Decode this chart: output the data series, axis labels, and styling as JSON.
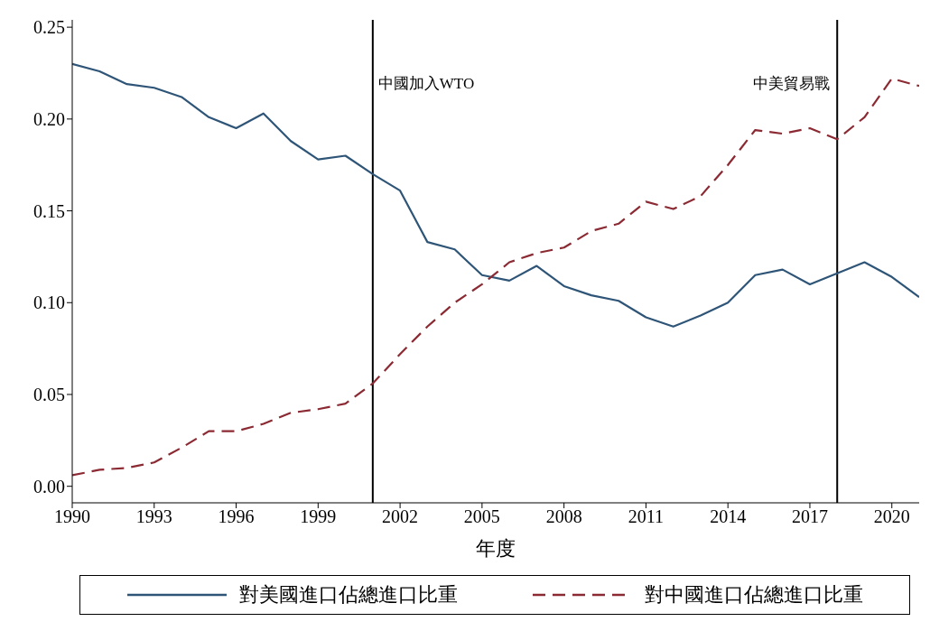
{
  "chart_data": {
    "type": "line",
    "xlabel": "年度",
    "x": [
      1990,
      1991,
      1992,
      1993,
      1994,
      1995,
      1996,
      1997,
      1998,
      1999,
      2000,
      2001,
      2002,
      2003,
      2004,
      2005,
      2006,
      2007,
      2008,
      2009,
      2010,
      2011,
      2012,
      2013,
      2014,
      2015,
      2016,
      2017,
      2018,
      2019,
      2020,
      2021
    ],
    "series": [
      {
        "name": "對美國進口佔總進口比重",
        "color": "#2e5577",
        "line_style": "solid",
        "values": [
          0.23,
          0.226,
          0.219,
          0.217,
          0.212,
          0.201,
          0.195,
          0.203,
          0.188,
          0.178,
          0.18,
          0.17,
          0.161,
          0.133,
          0.129,
          0.115,
          0.112,
          0.12,
          0.109,
          0.104,
          0.101,
          0.092,
          0.087,
          0.093,
          0.1,
          0.115,
          0.118,
          0.11,
          0.116,
          0.122,
          0.114,
          0.103
        ]
      },
      {
        "name": "對中國進口佔總進口比重",
        "color": "#8b2a33",
        "line_style": "dashed",
        "values": [
          0.006,
          0.009,
          0.01,
          0.013,
          0.021,
          0.03,
          0.03,
          0.034,
          0.04,
          0.042,
          0.045,
          0.056,
          0.072,
          0.087,
          0.1,
          0.11,
          0.122,
          0.127,
          0.13,
          0.139,
          0.143,
          0.155,
          0.151,
          0.158,
          0.175,
          0.194,
          0.192,
          0.195,
          0.189,
          0.201,
          0.222,
          0.218
        ]
      }
    ],
    "xlim": [
      1990,
      2021
    ],
    "xticks": [
      1990,
      1993,
      1996,
      1999,
      2002,
      2005,
      2008,
      2011,
      2014,
      2017,
      2020
    ],
    "ylim": [
      -0.009,
      0.254
    ],
    "yticks": [
      {
        "value": 0,
        "label": "0.00"
      },
      {
        "value": 0.05,
        "label": "0.05"
      },
      {
        "value": 0.1,
        "label": "0.10"
      },
      {
        "value": 0.15,
        "label": "0.15"
      },
      {
        "value": 0.2,
        "label": "0.20"
      },
      {
        "value": 0.25,
        "label": "0.25"
      }
    ],
    "ref_lines": [
      {
        "axis": "x",
        "value": 2001,
        "label": "中國加入WTO",
        "color": "#000000"
      },
      {
        "axis": "x",
        "value": 2018,
        "label": "中美貿易戰",
        "color": "#000000"
      }
    ],
    "grid": false,
    "legend": "bottom",
    "marker": "none"
  }
}
